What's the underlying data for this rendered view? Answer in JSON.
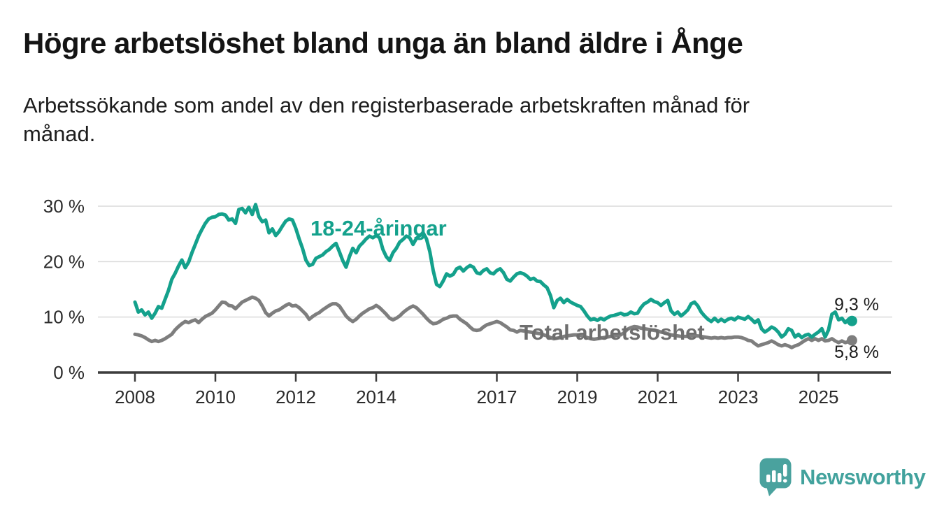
{
  "header": {
    "title": "Högre arbetslöshet bland unga än bland äldre i Ånge",
    "subtitle_lines": [
      "Arbetssökande som andel av den registerbaserade arbetskraften månad för",
      "månad."
    ]
  },
  "chart_data": {
    "type": "line",
    "unit": "percent",
    "x_range": {
      "start": "2008-01",
      "end": "2025-11",
      "interval": "month"
    },
    "ylim": [
      0,
      32
    ],
    "grid": "horizontal",
    "legend_position": "inline-labels",
    "y_ticks": [
      {
        "label": "30 %",
        "value": 30
      },
      {
        "label": "20 %",
        "value": 20
      },
      {
        "label": "10 %",
        "value": 10
      },
      {
        "label": "0 %",
        "value": 0
      }
    ],
    "x_ticks": [
      {
        "label": "2008",
        "year": 2008
      },
      {
        "label": "2010",
        "year": 2010
      },
      {
        "label": "2012",
        "year": 2012
      },
      {
        "label": "2014",
        "year": 2014
      },
      {
        "label": "2017",
        "year": 2017
      },
      {
        "label": "2019",
        "year": 2019
      },
      {
        "label": "2021",
        "year": 2021
      },
      {
        "label": "2023",
        "year": 2023
      },
      {
        "label": "2025",
        "year": 2025
      }
    ],
    "series": [
      {
        "name": "18-24-åringar",
        "color": "#14a18c",
        "label_color": "#14a18c",
        "end_label": "9,3 %",
        "end_value": 9.3,
        "values": [
          12.7,
          10.9,
          11.3,
          10.4,
          10.9,
          9.8,
          10.7,
          11.9,
          11.6,
          13.2,
          14.8,
          16.8,
          17.9,
          19.2,
          20.3,
          18.9,
          19.9,
          21.6,
          23.1,
          24.6,
          25.8,
          26.9,
          27.7,
          28.0,
          28.1,
          28.5,
          28.6,
          28.4,
          27.5,
          27.7,
          26.9,
          29.4,
          29.6,
          28.8,
          29.8,
          28.5,
          30.3,
          28.1,
          27.2,
          27.5,
          25.2,
          25.9,
          24.7,
          25.4,
          26.4,
          27.3,
          27.7,
          27.5,
          26.0,
          24.1,
          22.4,
          20.3,
          19.3,
          19.5,
          20.6,
          20.9,
          21.2,
          21.8,
          22.2,
          22.8,
          23.3,
          21.8,
          20.2,
          19.0,
          20.9,
          22.4,
          21.6,
          22.8,
          23.4,
          24.1,
          24.6,
          24.3,
          24.7,
          24.3,
          22.2,
          20.9,
          20.2,
          21.6,
          22.4,
          23.5,
          24.0,
          24.6,
          24.3,
          23.1,
          24.2,
          24.7,
          25.2,
          24.1,
          21.8,
          18.4,
          15.9,
          15.5,
          16.5,
          17.8,
          17.4,
          17.7,
          18.7,
          19.0,
          18.3,
          18.9,
          19.3,
          19.0,
          18.0,
          17.8,
          18.4,
          18.7,
          18.0,
          17.8,
          18.4,
          18.7,
          18.0,
          16.8,
          16.5,
          17.2,
          17.8,
          18.0,
          17.8,
          17.4,
          16.8,
          17.0,
          16.5,
          16.4,
          15.8,
          15.3,
          13.9,
          11.7,
          13.0,
          13.4,
          12.6,
          13.2,
          12.7,
          12.4,
          12.1,
          11.9,
          11.1,
          10.2,
          9.5,
          9.7,
          9.4,
          9.8,
          9.5,
          9.9,
          10.2,
          10.3,
          10.5,
          10.7,
          10.4,
          10.5,
          10.9,
          10.6,
          10.7,
          11.7,
          12.4,
          12.7,
          13.2,
          12.8,
          12.6,
          12.1,
          12.6,
          13.0,
          11.1,
          10.5,
          10.9,
          10.2,
          10.7,
          11.3,
          12.4,
          12.7,
          12.0,
          10.9,
          10.2,
          9.6,
          9.2,
          9.8,
          9.2,
          9.6,
          9.2,
          9.6,
          9.8,
          9.5,
          10.0,
          9.8,
          9.6,
          10.1,
          9.6,
          9.0,
          9.5,
          7.9,
          7.3,
          7.7,
          8.2,
          7.9,
          7.3,
          6.4,
          6.9,
          7.9,
          7.6,
          6.4,
          6.9,
          6.3,
          6.7,
          6.9,
          6.4,
          6.9,
          7.3,
          7.9,
          6.4,
          7.7,
          10.5,
          10.9,
          9.5,
          9.8,
          9.0,
          9.6,
          9.3
        ]
      },
      {
        "name": "Total arbetslöshet",
        "color": "#7e7e7e",
        "label_color": "#6e6e6e",
        "end_label": "5,8 %",
        "end_value": 5.8,
        "values": [
          6.9,
          6.8,
          6.6,
          6.3,
          5.9,
          5.6,
          5.8,
          5.6,
          5.8,
          6.1,
          6.5,
          6.9,
          7.7,
          8.3,
          8.8,
          9.2,
          9.0,
          9.3,
          9.5,
          9.0,
          9.6,
          10.1,
          10.4,
          10.7,
          11.3,
          12.0,
          12.7,
          12.6,
          12.1,
          12.0,
          11.5,
          12.1,
          12.7,
          13.0,
          13.3,
          13.6,
          13.4,
          13.0,
          12.0,
          10.8,
          10.2,
          10.7,
          11.1,
          11.3,
          11.7,
          12.1,
          12.4,
          12.0,
          12.1,
          11.7,
          11.1,
          10.5,
          9.6,
          10.1,
          10.5,
          10.8,
          11.3,
          11.7,
          12.1,
          12.4,
          12.4,
          12.0,
          11.1,
          10.2,
          9.6,
          9.2,
          9.6,
          10.2,
          10.7,
          11.1,
          11.5,
          11.7,
          12.1,
          11.7,
          11.1,
          10.5,
          9.8,
          9.5,
          9.8,
          10.2,
          10.8,
          11.3,
          11.7,
          12.0,
          11.7,
          11.1,
          10.5,
          9.8,
          9.2,
          8.8,
          8.9,
          9.2,
          9.6,
          9.8,
          10.1,
          10.2,
          10.2,
          9.6,
          9.2,
          8.8,
          8.2,
          7.7,
          7.6,
          7.7,
          8.2,
          8.6,
          8.8,
          9.0,
          9.2,
          9.0,
          8.6,
          8.2,
          7.7,
          7.6,
          7.3,
          7.6,
          7.5,
          7.4,
          7.3,
          7.2,
          7.1,
          7.0,
          6.8,
          6.6,
          6.3,
          6.1,
          6.2,
          6.3,
          6.5,
          6.6,
          6.7,
          6.8,
          6.8,
          6.7,
          6.5,
          6.3,
          6.1,
          6.0,
          6.1,
          6.2,
          6.3,
          6.4,
          6.5,
          6.6,
          6.7,
          6.8,
          7.2,
          7.8,
          8.1,
          8.3,
          8.2,
          8.0,
          7.9,
          7.8,
          7.7,
          7.6,
          7.5,
          7.3,
          7.2,
          7.0,
          6.8,
          6.7,
          6.6,
          6.5,
          6.5,
          6.5,
          6.6,
          6.6,
          6.6,
          6.5,
          6.4,
          6.3,
          6.2,
          6.3,
          6.2,
          6.3,
          6.2,
          6.3,
          6.3,
          6.4,
          6.4,
          6.3,
          6.1,
          5.8,
          5.7,
          5.2,
          4.8,
          5.0,
          5.2,
          5.4,
          5.7,
          5.4,
          5.0,
          4.8,
          5.0,
          4.8,
          4.5,
          4.8,
          5.0,
          5.4,
          5.8,
          6.1,
          5.8,
          6.1,
          5.8,
          6.1,
          5.7,
          5.8,
          6.1,
          5.7,
          5.4,
          5.7,
          5.4,
          5.6,
          5.8
        ]
      }
    ]
  },
  "branding": {
    "logo_text": "Newsworthy",
    "logo_icon": "newsworthy-speech-bubble-bar-chart-icon",
    "logo_color": "#4aa29e"
  },
  "colors": {
    "accent_teal": "#14a18c",
    "line_gray": "#7e7e7e",
    "grid": "#dadada",
    "axis": "#3c3c3c",
    "text": "#1d1d1d"
  }
}
